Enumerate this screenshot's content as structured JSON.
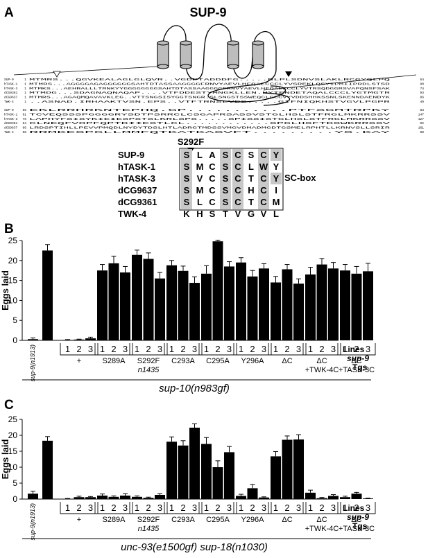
{
  "panel_labels": {
    "a": "A",
    "b": "B",
    "c": "C"
  },
  "protein_title": "SUP-9",
  "mutation_label": "S292F",
  "sc_box_label": "SC-box",
  "alignment": {
    "block1": [
      {
        "name": "SUP-9",
        "start": "1",
        "seq": "MTMRS...QGVKEALAGLGLQVR..VGDPTADDDFG.....RLPLSDNVSLAKLRCGYQLPQ",
        "end": "54"
      },
      {
        "name": "hTASK-1",
        "start": "1",
        "seq": "MTMRS...AGGGGAGAGGGGGGSAHTDTASSAAGGGGFRNVYAEVLHFQALCCCLYVSREKLQSYIPMIIPRDLSTSD",
        "end": "90"
      },
      {
        "name": "hTASK-3",
        "start": "1",
        "seq": "MTMKS...AEHRALLLTRNKYYGGGGGGGGSAHTDTASSAAGGGGFRNVYAEVLHFQALCCCLYVTRSQDGGRSVAPQNSFSAK",
        "end": "74"
      },
      {
        "name": "dCG9361",
        "start": "1",
        "seq": "MTMDG...SDAGNAQNAQAP....VTFDDESTYMNGKLLEN.HYTENDETAQALCCCLYGTMGTR",
        "end": "93"
      },
      {
        "name": "dCG9637",
        "start": "1",
        "seq": "MTMRS...AGAQMQAVAVKLEG..VTTSNGSISYGGTSNGR.SLSNGSTSSWEQCLGCCVYVDDSHHKSSNLSKENNDAENDYK",
        "end": "86"
      },
      {
        "name": "TWK-4",
        "start": "1",
        "seq": "..ASNAD.IRHAAKTVSN.EPS..VTFTRNSLVDS.....GIFNIQKHSTVGVLPGPR",
        "end": "49"
      }
    ],
    "block2": [
      {
        "name": "SUP-9",
        "start": "55",
        "seq": "EKLRRHRKNTEPHQ.GP...........PTFSGMTRPKY",
        "end": "83"
      },
      {
        "name": "hTASK-1",
        "start": "91",
        "seq": "TCVEQSSSPGGGGRYSDTPSRRCLCSGAPRSASSVSTGLHSLSTFRGLMKRRSSV",
        "end": "147"
      },
      {
        "name": "hTASK-3",
        "start": "75",
        "seq": "LAPHYFSISYKIEIESPSTSLKRLSPS.....SPISSISTGLHSLSTFRGLMKRRSSV",
        "end": "127"
      },
      {
        "name": "dCG9361",
        "start": "64",
        "seq": "CLNEQFVOPFQPTDIIESTLCL............SPGLHSFTDSWKRRSSV",
        "end": "92"
      },
      {
        "name": "dCG9637",
        "start": "86",
        "seq": "LRDSPTIHLLPEVVPMQDLNYDYTDSLHTLADRGTMDSSVMGVDMADMGDTGSMELRPHTLLKRNVSLLSRIR",
        "end": "161"
      },
      {
        "name": "TWK-4",
        "start": "50",
        "seq": "RRMKESPGLLMMFQTKATKASVFT.........YS.KAY",
        "end": "80"
      }
    ]
  },
  "sc_box": {
    "rows": [
      {
        "name": "SUP-9",
        "residues": [
          "S",
          "L",
          "A",
          "S",
          "C",
          "S",
          "C",
          "Y"
        ]
      },
      {
        "name": "hTASK-1",
        "residues": [
          "S",
          "M",
          "C",
          "S",
          "C",
          "L",
          "W",
          "Y"
        ]
      },
      {
        "name": "hTASK-3",
        "residues": [
          "S",
          "V",
          "C",
          "S",
          "C",
          "T",
          "C",
          "Y"
        ]
      },
      {
        "name": "dCG9637",
        "residues": [
          "S",
          "M",
          "C",
          "S",
          "C",
          "H",
          "C",
          "I"
        ]
      },
      {
        "name": "dCG9361",
        "residues": [
          "S",
          "L",
          "C",
          "S",
          "C",
          "T",
          "C",
          "M"
        ]
      },
      {
        "name": "TWK-4",
        "residues": [
          "K",
          "H",
          "S",
          "T",
          "V",
          "G",
          "V",
          "L"
        ]
      }
    ]
  },
  "row_labels": {
    "lines": "Lines",
    "gene": "sup-9",
    "tgs": "Tgs"
  },
  "chart_data": [
    {
      "type": "bar",
      "panel": "B",
      "ylabel": "Eggs laid",
      "ylim": [
        0,
        25
      ],
      "yticks": [
        "0",
        "5",
        "10",
        "15",
        "20",
        "25"
      ],
      "strain_label": "sup-10(n983gf)",
      "control_label": "sup-9(n1913)",
      "groups": [
        {
          "label": "",
          "values": [
            0.3,
            22.5
          ],
          "errors": [
            0.3,
            1.5
          ]
        },
        {
          "label": "+",
          "sublabel": "",
          "lines": [
            "1",
            "2",
            "3"
          ],
          "values": [
            0.1,
            0.2,
            0.5
          ],
          "errors": [
            0.1,
            0.1,
            0.3
          ]
        },
        {
          "label": "S289A",
          "sublabel": "",
          "lines": [
            "1",
            "2",
            "3"
          ],
          "values": [
            17.5,
            19.3,
            17.0
          ],
          "errors": [
            1.5,
            1.8,
            1.5
          ]
        },
        {
          "label": "S292F",
          "sublabel": "n1435",
          "lines": [
            "1",
            "2",
            "3"
          ],
          "values": [
            21.4,
            20.4,
            15.5
          ],
          "errors": [
            1.2,
            1.5,
            1.5
          ]
        },
        {
          "label": "C293A",
          "sublabel": "",
          "lines": [
            "1",
            "2",
            "3"
          ],
          "values": [
            18.8,
            17.4,
            14.4
          ],
          "errors": [
            1.2,
            1.2,
            1.5
          ]
        },
        {
          "label": "C295A",
          "sublabel": "",
          "lines": [
            "1",
            "2",
            "3"
          ],
          "values": [
            16.7,
            24.8,
            18.5
          ],
          "errors": [
            2.0,
            0.3,
            1.2
          ]
        },
        {
          "label": "Y296A",
          "sublabel": "",
          "lines": [
            "1",
            "2",
            "3"
          ],
          "values": [
            19.5,
            16.0,
            18.0
          ],
          "errors": [
            1.2,
            1.5,
            1.2
          ]
        },
        {
          "label": "ΔC",
          "sublabel": "",
          "lines": [
            "1",
            "2",
            "3"
          ],
          "values": [
            14.5,
            17.8,
            14.2
          ],
          "errors": [
            1.5,
            1.2,
            1.2
          ]
        },
        {
          "label": "ΔC",
          "sublabel": "+TWK-4C",
          "lines": [
            "1",
            "2",
            "3"
          ],
          "values": [
            16.5,
            19.0,
            18.0
          ],
          "errors": [
            1.8,
            1.5,
            1.5
          ]
        },
        {
          "label": "ΔC",
          "sublabel": "+TASK-3C",
          "lines": [
            "1",
            "2",
            "3"
          ],
          "values": [
            17.5,
            16.7,
            17.3
          ],
          "errors": [
            1.5,
            1.8,
            2.0
          ]
        }
      ]
    },
    {
      "type": "bar",
      "panel": "C",
      "ylabel": "Eggs laid",
      "ylim": [
        0,
        25
      ],
      "yticks": [
        "0",
        "5",
        "10",
        "15",
        "20",
        "25"
      ],
      "strain_label": "unc-93(e1500gf) sup-18(n1030)",
      "control_label": "sup-9(n1913)",
      "groups": [
        {
          "label": "",
          "values": [
            1.7,
            18.3
          ],
          "errors": [
            0.8,
            1.3
          ]
        },
        {
          "label": "+",
          "sublabel": "",
          "lines": [
            "1",
            "2",
            "3"
          ],
          "values": [
            0.1,
            0.6,
            0.6
          ],
          "errors": [
            0.1,
            0.3,
            0.2
          ]
        },
        {
          "label": "S289A",
          "sublabel": "",
          "lines": [
            "1",
            "2",
            "3"
          ],
          "values": [
            1.1,
            0.7,
            1.1
          ],
          "errors": [
            0.5,
            0.3,
            0.6
          ]
        },
        {
          "label": "S292F",
          "sublabel": "n1435",
          "lines": [
            "1",
            "2",
            "3"
          ],
          "values": [
            0.7,
            0.4,
            1.3
          ],
          "errors": [
            0.3,
            0.2,
            0.4
          ]
        },
        {
          "label": "C293A",
          "sublabel": "",
          "lines": [
            "1",
            "2",
            "3"
          ],
          "values": [
            18.0,
            16.8,
            22.4
          ],
          "errors": [
            1.5,
            1.5,
            1.2
          ]
        },
        {
          "label": "C295A",
          "sublabel": "",
          "lines": [
            "1",
            "2",
            "3"
          ],
          "values": [
            17.3,
            10.0,
            14.7
          ],
          "errors": [
            2.0,
            2.0,
            1.8
          ]
        },
        {
          "label": "Y296A",
          "sublabel": "",
          "lines": [
            "1",
            "2",
            "3"
          ],
          "values": [
            1.0,
            3.4,
            0.5
          ],
          "errors": [
            0.5,
            1.2,
            0.2
          ]
        },
        {
          "label": "ΔC",
          "sublabel": "",
          "lines": [
            "1",
            "2",
            "3"
          ],
          "values": [
            13.4,
            18.6,
            18.7
          ],
          "errors": [
            1.5,
            1.2,
            1.5
          ]
        },
        {
          "label": "ΔC",
          "sublabel": "+TWK-4C",
          "lines": [
            "1",
            "2",
            "3"
          ],
          "values": [
            2.0,
            0.3,
            1.0
          ],
          "errors": [
            0.8,
            0.2,
            0.4
          ]
        },
        {
          "label": "ΔC",
          "sublabel": "+TASK-3C",
          "lines": [
            "1",
            "2",
            "3"
          ],
          "values": [
            0.6,
            1.7,
            0.2
          ],
          "errors": [
            0.3,
            0.4,
            0.1
          ]
        }
      ]
    }
  ]
}
